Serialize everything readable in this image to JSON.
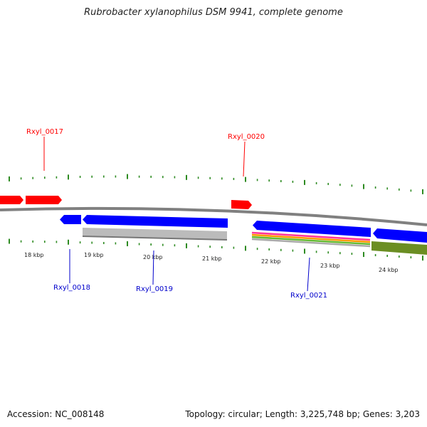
{
  "title": "Rubrobacter xylanophilus DSM 9941, complete genome",
  "footer": {
    "accession": "Accession: NC_008148",
    "info": "Topology: circular; Length: 3,225,748 bp; Genes: 3,203"
  },
  "colors": {
    "forward_gene": "#ff0000",
    "reverse_gene": "#0000ff",
    "ticks": "#2e8b22",
    "backbone": "#808080",
    "pseudo_feature": "#bbbbbb",
    "olive_feature": "#6b8e23"
  },
  "scale_labels": [
    "18 kbp",
    "19 kbp",
    "20 kbp",
    "21 kbp",
    "22 kbp",
    "23 kbp",
    "24 kbp"
  ],
  "gene_labels": [
    {
      "id": "Rxyl_0017",
      "strand": "forward"
    },
    {
      "id": "Rxyl_0018",
      "strand": "reverse"
    },
    {
      "id": "Rxyl_0019",
      "strand": "reverse"
    },
    {
      "id": "Rxyl_0020",
      "strand": "forward"
    },
    {
      "id": "Rxyl_0021",
      "strand": "reverse"
    }
  ]
}
